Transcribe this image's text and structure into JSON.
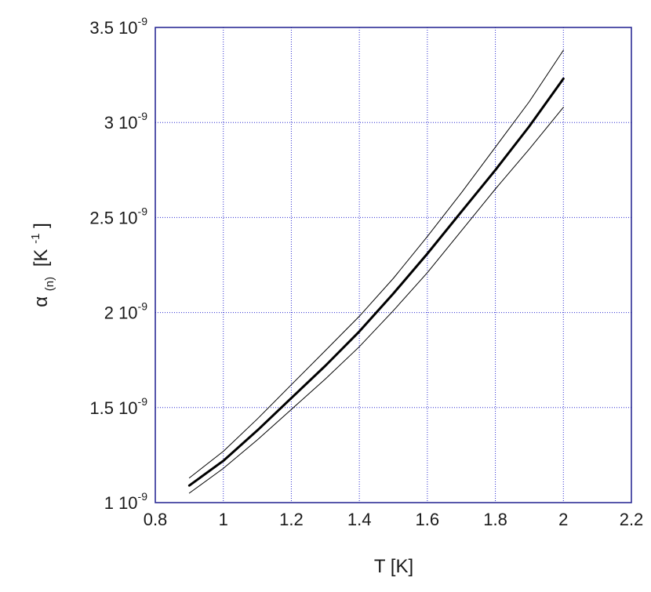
{
  "chart_data": {
    "type": "line",
    "xlabel": "T [K]",
    "ylabel": {
      "symbol": "α",
      "subscript": "(n)",
      "unit_open": "[K",
      "unit_exp": "-1",
      "unit_close": "]"
    },
    "xlim": [
      0.8,
      2.2
    ],
    "ylim": [
      1e-09,
      3.5e-09
    ],
    "grid": true,
    "x_ticks": [
      {
        "value": 0.8,
        "label": "0.8"
      },
      {
        "value": 1.0,
        "label": "1"
      },
      {
        "value": 1.2,
        "label": "1.2"
      },
      {
        "value": 1.4,
        "label": "1.4"
      },
      {
        "value": 1.6,
        "label": "1.6"
      },
      {
        "value": 1.8,
        "label": "1.8"
      },
      {
        "value": 2.0,
        "label": "2"
      },
      {
        "value": 2.2,
        "label": "2.2"
      }
    ],
    "y_ticks": [
      {
        "value": 1e-09,
        "mantissa": "1 10",
        "exp": "-9"
      },
      {
        "value": 1.5e-09,
        "mantissa": "1.5 10",
        "exp": "-9"
      },
      {
        "value": 2e-09,
        "mantissa": "2 10",
        "exp": "-9"
      },
      {
        "value": 2.5e-09,
        "mantissa": "2.5 10",
        "exp": "-9"
      },
      {
        "value": 3e-09,
        "mantissa": "3 10",
        "exp": "-9"
      },
      {
        "value": 3.5e-09,
        "mantissa": "3.5 10",
        "exp": "-9"
      }
    ],
    "x": [
      0.9,
      1.0,
      1.1,
      1.2,
      1.3,
      1.4,
      1.5,
      1.6,
      1.7,
      1.8,
      1.9,
      2.0
    ],
    "series": [
      {
        "role": "central",
        "values": [
          1.09e-09,
          1.22e-09,
          1.38e-09,
          1.55e-09,
          1.72e-09,
          1.9e-09,
          2.1e-09,
          2.31e-09,
          2.53e-09,
          2.75e-09,
          2.98e-09,
          3.23e-09
        ]
      },
      {
        "role": "upper",
        "values": [
          1.13e-09,
          1.27e-09,
          1.44e-09,
          1.62e-09,
          1.8e-09,
          1.98e-09,
          2.18e-09,
          2.4e-09,
          2.63e-09,
          2.87e-09,
          3.11e-09,
          3.38e-09
        ]
      },
      {
        "role": "lower",
        "values": [
          1.05e-09,
          1.18e-09,
          1.33e-09,
          1.49e-09,
          1.65e-09,
          1.82e-09,
          2.01e-09,
          2.21e-09,
          2.43e-09,
          2.65e-09,
          2.86e-09,
          3.08e-09
        ]
      }
    ]
  }
}
